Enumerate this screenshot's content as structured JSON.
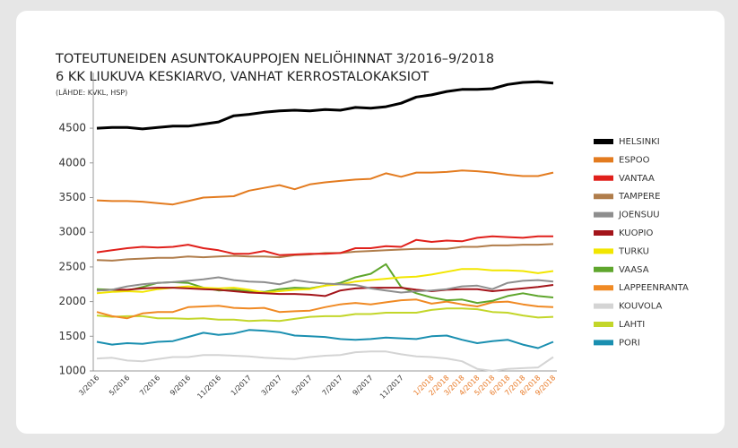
{
  "chart_data": {
    "type": "line",
    "title": "TOTEUTUNEIDEN ASUNTOKAUPPOJEN NELIÖHINNAT 3/2016–9/2018",
    "subtitle": "6 KK LIUKUVA KESKIARVO, VANHAT KERROSTALOKAKSIOT",
    "source": "(LÄHDE: KVKL, HSP)",
    "categories": [
      "3/2016",
      null,
      "5/2016",
      null,
      "7/2016",
      null,
      "9/2016",
      null,
      "11/2016",
      null,
      "1/2017",
      null,
      "3/2017",
      null,
      "5/2017",
      null,
      "7/2017",
      null,
      "9/2017",
      null,
      "11/2017",
      null,
      "1/2018",
      "2/2018",
      "3/2018",
      "4/2018",
      "5/2018",
      "6/2018",
      "7/2018",
      "8/2018",
      "9/2018"
    ],
    "xtick_colors": [
      "#333333",
      null,
      "#333333",
      null,
      "#333333",
      null,
      "#333333",
      null,
      "#333333",
      null,
      "#333333",
      null,
      "#333333",
      null,
      "#333333",
      null,
      "#333333",
      null,
      "#333333",
      null,
      "#333333",
      null,
      "#e87722",
      "#e87722",
      "#e87722",
      "#e87722",
      "#e87722",
      "#e87722",
      "#e87722",
      "#e87722",
      "#e87722"
    ],
    "ylim": [
      1000,
      5300
    ],
    "yticks": [
      1000,
      1500,
      2000,
      2500,
      3000,
      3500,
      4000,
      4500
    ],
    "grid": false,
    "legend": "right",
    "series": [
      {
        "name": "HELSINKI",
        "color": "#000000",
        "values": [
          4500,
          4510,
          4510,
          4490,
          4510,
          4530,
          4530,
          4560,
          4590,
          4680,
          4700,
          4730,
          4750,
          4760,
          4750,
          4770,
          4760,
          4800,
          4790,
          4810,
          4860,
          4950,
          4980,
          5030,
          5060,
          5060,
          5070,
          5130,
          5160,
          5170,
          5150
        ]
      },
      {
        "name": "ESPOO",
        "color": "#e37b1f",
        "values": [
          3460,
          3450,
          3450,
          3440,
          3420,
          3400,
          3450,
          3500,
          3510,
          3520,
          3600,
          3640,
          3680,
          3620,
          3690,
          3720,
          3740,
          3760,
          3770,
          3850,
          3800,
          3860,
          3860,
          3870,
          3890,
          3880,
          3860,
          3830,
          3810,
          3810,
          3860
        ]
      },
      {
        "name": "VANTAA",
        "color": "#e0201b",
        "values": [
          2710,
          2740,
          2770,
          2790,
          2780,
          2790,
          2820,
          2770,
          2740,
          2690,
          2690,
          2730,
          2670,
          2680,
          2690,
          2690,
          2700,
          2770,
          2770,
          2800,
          2790,
          2890,
          2860,
          2880,
          2870,
          2920,
          2940,
          2930,
          2920,
          2940,
          2940
        ]
      },
      {
        "name": "TAMPERE",
        "color": "#b07d4b",
        "values": [
          2600,
          2590,
          2610,
          2620,
          2630,
          2630,
          2650,
          2640,
          2650,
          2660,
          2650,
          2650,
          2640,
          2670,
          2680,
          2700,
          2700,
          2720,
          2730,
          2740,
          2750,
          2760,
          2760,
          2760,
          2790,
          2790,
          2810,
          2810,
          2820,
          2820,
          2830
        ]
      },
      {
        "name": "JOENSUU",
        "color": "#8e8e8e",
        "values": [
          2160,
          2170,
          2220,
          2250,
          2270,
          2280,
          2300,
          2320,
          2350,
          2310,
          2290,
          2280,
          2250,
          2310,
          2280,
          2260,
          2250,
          2240,
          2190,
          2160,
          2130,
          2150,
          2160,
          2180,
          2220,
          2230,
          2180,
          2270,
          2300,
          2310,
          2290
        ]
      },
      {
        "name": "KUOPIO",
        "color": "#a3141a",
        "values": [
          2160,
          2170,
          2170,
          2190,
          2200,
          2200,
          2190,
          2180,
          2170,
          2150,
          2130,
          2120,
          2110,
          2110,
          2100,
          2080,
          2160,
          2190,
          2200,
          2200,
          2200,
          2170,
          2150,
          2170,
          2180,
          2180,
          2150,
          2170,
          2190,
          2210,
          2240
        ]
      },
      {
        "name": "TURKU",
        "color": "#f2e600",
        "values": [
          2120,
          2140,
          2150,
          2140,
          2180,
          2200,
          2220,
          2200,
          2190,
          2200,
          2170,
          2130,
          2150,
          2170,
          2180,
          2230,
          2250,
          2290,
          2310,
          2330,
          2350,
          2360,
          2390,
          2430,
          2470,
          2470,
          2450,
          2450,
          2440,
          2410,
          2440
        ]
      },
      {
        "name": "VAASA",
        "color": "#5fa62d",
        "values": [
          2180,
          2170,
          2160,
          2210,
          2270,
          2280,
          2270,
          2200,
          2160,
          2170,
          2150,
          2140,
          2180,
          2200,
          2190,
          2230,
          2270,
          2350,
          2400,
          2540,
          2210,
          2120,
          2060,
          2020,
          2030,
          1980,
          2010,
          2080,
          2120,
          2080,
          2060
        ]
      },
      {
        "name": "LAPPEENRANTA",
        "color": "#f08a24",
        "values": [
          1850,
          1790,
          1760,
          1830,
          1850,
          1850,
          1920,
          1930,
          1940,
          1910,
          1900,
          1910,
          1850,
          1860,
          1870,
          1920,
          1960,
          1980,
          1960,
          1990,
          2020,
          2030,
          1970,
          2000,
          1960,
          1930,
          1990,
          2000,
          1960,
          1930,
          1920
        ]
      },
      {
        "name": "KOUVOLA",
        "color": "#d4d4d4",
        "values": [
          1180,
          1190,
          1150,
          1140,
          1170,
          1200,
          1200,
          1230,
          1230,
          1220,
          1210,
          1190,
          1180,
          1170,
          1200,
          1220,
          1230,
          1270,
          1280,
          1280,
          1240,
          1210,
          1200,
          1180,
          1140,
          1030,
          1000,
          1030,
          1040,
          1050,
          1200
        ]
      },
      {
        "name": "LAHTI",
        "color": "#c3d62a",
        "values": [
          1800,
          1780,
          1790,
          1790,
          1760,
          1760,
          1750,
          1760,
          1740,
          1740,
          1720,
          1730,
          1720,
          1750,
          1780,
          1790,
          1790,
          1820,
          1820,
          1840,
          1840,
          1840,
          1880,
          1900,
          1900,
          1890,
          1850,
          1840,
          1800,
          1770,
          1780
        ]
      },
      {
        "name": "PORI",
        "color": "#1a8fb0",
        "values": [
          1420,
          1380,
          1400,
          1390,
          1420,
          1430,
          1490,
          1550,
          1520,
          1540,
          1590,
          1580,
          1560,
          1510,
          1500,
          1490,
          1460,
          1450,
          1460,
          1480,
          1470,
          1460,
          1500,
          1510,
          1450,
          1400,
          1430,
          1450,
          1380,
          1330,
          1420
        ]
      }
    ]
  }
}
